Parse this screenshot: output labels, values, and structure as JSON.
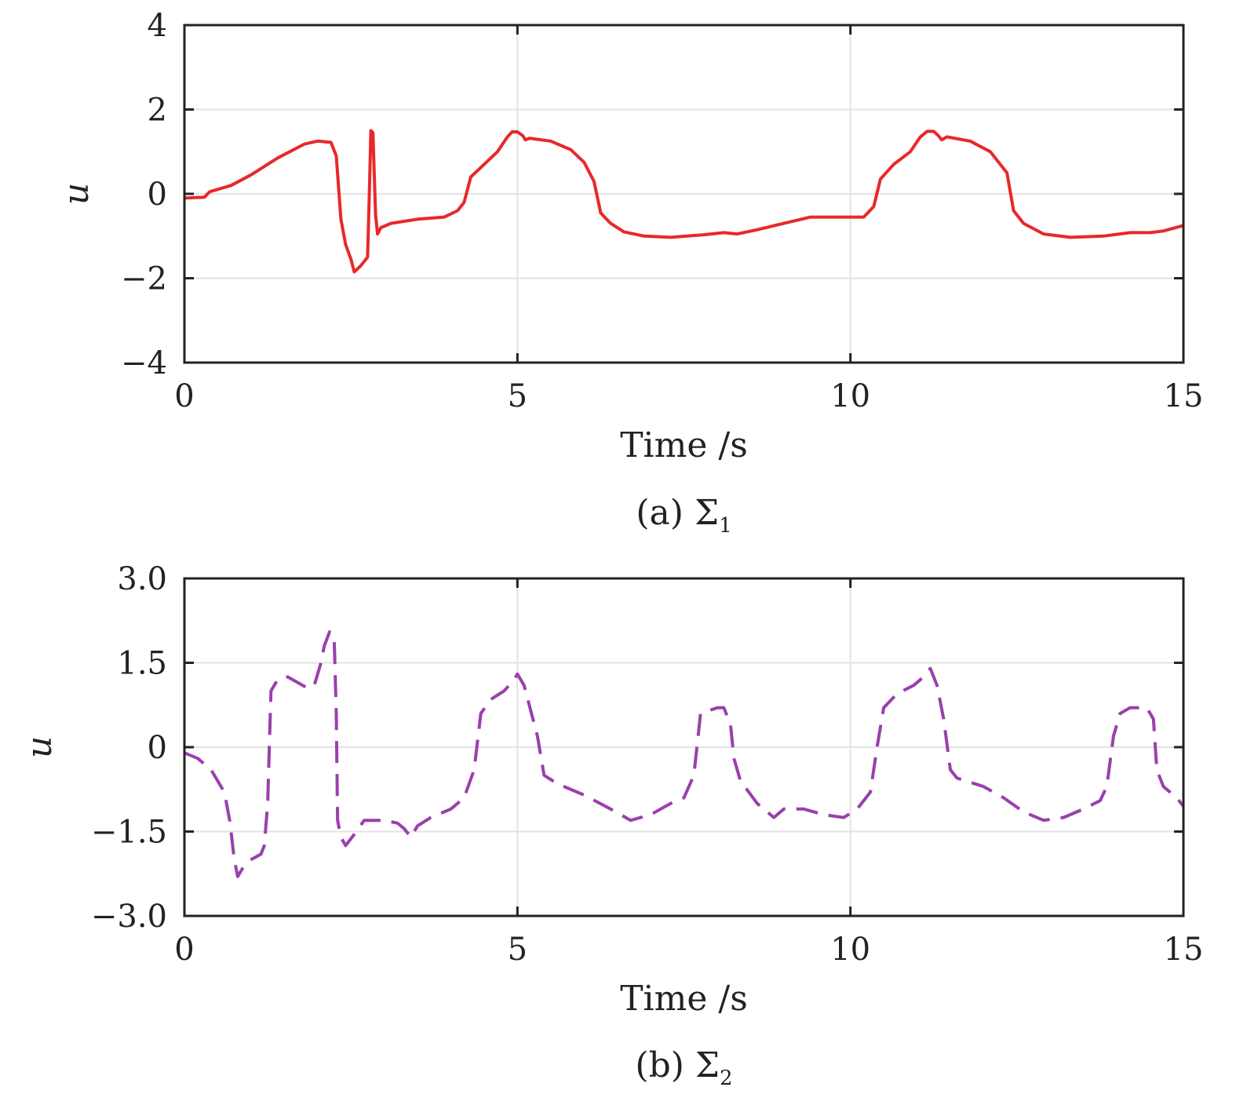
{
  "chart_data": [
    {
      "type": "line",
      "caption": "(a) Σ",
      "caption_subscript": "1",
      "xlabel": "Time /s",
      "ylabel": "u",
      "xlim": [
        0,
        15
      ],
      "ylim": [
        -4,
        4
      ],
      "xticks": [
        "0",
        "5",
        "10",
        "15"
      ],
      "yticks": [
        "−4",
        "−2",
        "0",
        "2",
        "4"
      ],
      "grid": true,
      "series": [
        {
          "color": "#e8282a",
          "style": "solid",
          "points": [
            [
              0,
              -0.1
            ],
            [
              0.3,
              -0.08
            ],
            [
              0.38,
              0.05
            ],
            [
              0.7,
              0.2
            ],
            [
              1.0,
              0.45
            ],
            [
              1.4,
              0.85
            ],
            [
              1.8,
              1.18
            ],
            [
              2.0,
              1.25
            ],
            [
              2.2,
              1.22
            ],
            [
              2.28,
              0.9
            ],
            [
              2.35,
              -0.6
            ],
            [
              2.42,
              -1.2
            ],
            [
              2.5,
              -1.55
            ],
            [
              2.55,
              -1.85
            ],
            [
              2.65,
              -1.7
            ],
            [
              2.75,
              -1.5
            ],
            [
              2.78,
              0.2
            ],
            [
              2.8,
              1.5
            ],
            [
              2.83,
              1.45
            ],
            [
              2.87,
              -0.5
            ],
            [
              2.9,
              -0.95
            ],
            [
              2.95,
              -0.8
            ],
            [
              3.1,
              -0.7
            ],
            [
              3.5,
              -0.6
            ],
            [
              3.9,
              -0.55
            ],
            [
              4.1,
              -0.4
            ],
            [
              4.2,
              -0.2
            ],
            [
              4.3,
              0.4
            ],
            [
              4.5,
              0.7
            ],
            [
              4.7,
              1.0
            ],
            [
              4.85,
              1.35
            ],
            [
              4.92,
              1.47
            ],
            [
              5.0,
              1.47
            ],
            [
              5.08,
              1.38
            ],
            [
              5.12,
              1.28
            ],
            [
              5.18,
              1.32
            ],
            [
              5.5,
              1.25
            ],
            [
              5.8,
              1.05
            ],
            [
              6.0,
              0.75
            ],
            [
              6.15,
              0.3
            ],
            [
              6.25,
              -0.45
            ],
            [
              6.4,
              -0.7
            ],
            [
              6.6,
              -0.9
            ],
            [
              6.9,
              -1.0
            ],
            [
              7.3,
              -1.03
            ],
            [
              7.8,
              -0.97
            ],
            [
              8.1,
              -0.92
            ],
            [
              8.3,
              -0.95
            ],
            [
              8.6,
              -0.85
            ],
            [
              9.0,
              -0.7
            ],
            [
              9.4,
              -0.55
            ],
            [
              9.8,
              -0.55
            ],
            [
              10.2,
              -0.55
            ],
            [
              10.35,
              -0.3
            ],
            [
              10.45,
              0.35
            ],
            [
              10.65,
              0.7
            ],
            [
              10.9,
              1.0
            ],
            [
              11.05,
              1.35
            ],
            [
              11.15,
              1.48
            ],
            [
              11.25,
              1.48
            ],
            [
              11.32,
              1.38
            ],
            [
              11.37,
              1.28
            ],
            [
              11.45,
              1.35
            ],
            [
              11.8,
              1.25
            ],
            [
              12.1,
              1.0
            ],
            [
              12.35,
              0.5
            ],
            [
              12.45,
              -0.4
            ],
            [
              12.6,
              -0.7
            ],
            [
              12.9,
              -0.95
            ],
            [
              13.3,
              -1.03
            ],
            [
              13.8,
              -1.0
            ],
            [
              14.2,
              -0.92
            ],
            [
              14.5,
              -0.92
            ],
            [
              14.7,
              -0.88
            ],
            [
              15.0,
              -0.75
            ]
          ]
        }
      ]
    },
    {
      "type": "line",
      "caption": "(b) Σ",
      "caption_subscript": "2",
      "xlabel": "Time /s",
      "ylabel": "u",
      "xlim": [
        0,
        15
      ],
      "ylim": [
        -3.0,
        3.0
      ],
      "xticks": [
        "0",
        "5",
        "10",
        "15"
      ],
      "yticks": [
        "−3.0",
        "−1.5",
        "0",
        "1.5",
        "3.0"
      ],
      "grid": true,
      "series": [
        {
          "color": "#9b3fad",
          "style": "dashed",
          "points": [
            [
              0,
              -0.1
            ],
            [
              0.2,
              -0.2
            ],
            [
              0.4,
              -0.4
            ],
            [
              0.6,
              -0.8
            ],
            [
              0.68,
              -1.3
            ],
            [
              0.75,
              -2.0
            ],
            [
              0.8,
              -2.3
            ],
            [
              0.9,
              -2.1
            ],
            [
              1.0,
              -2.0
            ],
            [
              1.15,
              -1.9
            ],
            [
              1.2,
              -1.75
            ],
            [
              1.25,
              -1.0
            ],
            [
              1.3,
              1.0
            ],
            [
              1.4,
              1.2
            ],
            [
              1.55,
              1.25
            ],
            [
              1.7,
              1.15
            ],
            [
              1.85,
              1.05
            ],
            [
              1.95,
              1.1
            ],
            [
              2.05,
              1.5
            ],
            [
              2.1,
              1.8
            ],
            [
              2.18,
              2.05
            ],
            [
              2.25,
              1.9
            ],
            [
              2.28,
              0.6
            ],
            [
              2.3,
              -1.3
            ],
            [
              2.35,
              -1.6
            ],
            [
              2.42,
              -1.75
            ],
            [
              2.55,
              -1.55
            ],
            [
              2.7,
              -1.3
            ],
            [
              3.0,
              -1.3
            ],
            [
              3.2,
              -1.35
            ],
            [
              3.3,
              -1.45
            ],
            [
              3.4,
              -1.6
            ],
            [
              3.5,
              -1.4
            ],
            [
              3.7,
              -1.25
            ],
            [
              4.0,
              -1.1
            ],
            [
              4.2,
              -0.9
            ],
            [
              4.35,
              -0.4
            ],
            [
              4.45,
              0.6
            ],
            [
              4.6,
              0.85
            ],
            [
              4.8,
              1.0
            ],
            [
              4.95,
              1.2
            ],
            [
              5.0,
              1.3
            ],
            [
              5.1,
              1.1
            ],
            [
              5.3,
              0.2
            ],
            [
              5.4,
              -0.5
            ],
            [
              5.6,
              -0.65
            ],
            [
              6.0,
              -0.85
            ],
            [
              6.4,
              -1.1
            ],
            [
              6.7,
              -1.3
            ],
            [
              7.0,
              -1.2
            ],
            [
              7.3,
              -1.0
            ],
            [
              7.5,
              -0.9
            ],
            [
              7.65,
              -0.5
            ],
            [
              7.75,
              0.6
            ],
            [
              8.0,
              0.7
            ],
            [
              8.1,
              0.7
            ],
            [
              8.2,
              0.4
            ],
            [
              8.25,
              -0.2
            ],
            [
              8.35,
              -0.6
            ],
            [
              8.6,
              -1.0
            ],
            [
              8.85,
              -1.25
            ],
            [
              9.0,
              -1.1
            ],
            [
              9.3,
              -1.1
            ],
            [
              9.6,
              -1.2
            ],
            [
              9.9,
              -1.25
            ],
            [
              10.1,
              -1.1
            ],
            [
              10.3,
              -0.8
            ],
            [
              10.4,
              0.0
            ],
            [
              10.5,
              0.7
            ],
            [
              10.7,
              0.95
            ],
            [
              10.95,
              1.1
            ],
            [
              11.1,
              1.25
            ],
            [
              11.2,
              1.4
            ],
            [
              11.3,
              1.1
            ],
            [
              11.4,
              0.5
            ],
            [
              11.5,
              -0.4
            ],
            [
              11.6,
              -0.55
            ],
            [
              12.0,
              -0.7
            ],
            [
              12.3,
              -0.9
            ],
            [
              12.6,
              -1.15
            ],
            [
              12.9,
              -1.3
            ],
            [
              13.2,
              -1.25
            ],
            [
              13.5,
              -1.1
            ],
            [
              13.75,
              -0.95
            ],
            [
              13.85,
              -0.7
            ],
            [
              13.95,
              0.2
            ],
            [
              14.05,
              0.6
            ],
            [
              14.2,
              0.7
            ],
            [
              14.45,
              0.7
            ],
            [
              14.55,
              0.5
            ],
            [
              14.6,
              -0.4
            ],
            [
              14.7,
              -0.7
            ],
            [
              14.9,
              -0.9
            ],
            [
              15.0,
              -1.05
            ]
          ]
        }
      ]
    }
  ]
}
